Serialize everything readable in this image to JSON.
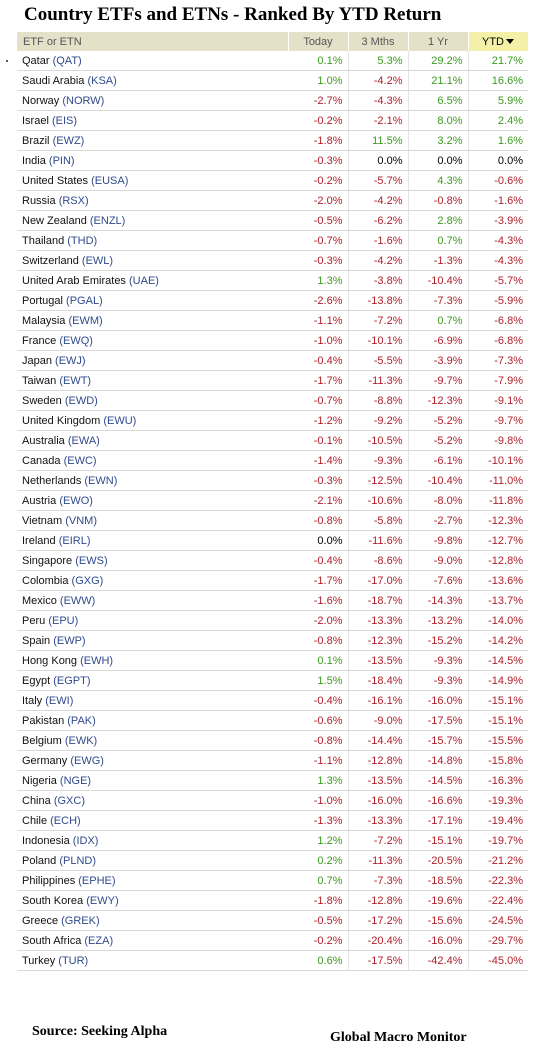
{
  "title": "Country ETFs and ETNs - Ranked By YTD Return",
  "footer": {
    "source": "Source:  Seeking Alpha",
    "brand": "Global Macro Monitor"
  },
  "colors": {
    "positive": "#3a9a1e",
    "negative": "#b0202a",
    "header_bg": "#e5e1c8",
    "sorted_header_bg": "#f4f0a8",
    "ticker": "#2f4a8c"
  },
  "chart_data": {
    "type": "table",
    "columns": [
      "ETF or ETN",
      "Today",
      "3 Mths",
      "1 Yr",
      "YTD"
    ],
    "sorted_by": "YTD",
    "rows": [
      {
        "name": "Qatar",
        "ticker": "(QAT)",
        "today": "0.1%",
        "m3": "5.3%",
        "yr1": "29.2%",
        "ytd": "21.7%"
      },
      {
        "name": "Saudi Arabia",
        "ticker": "(KSA)",
        "today": "1.0%",
        "m3": "-4.2%",
        "yr1": "21.1%",
        "ytd": "16.6%"
      },
      {
        "name": "Norway",
        "ticker": "(NORW)",
        "today": "-2.7%",
        "m3": "-4.3%",
        "yr1": "6.5%",
        "ytd": "5.9%"
      },
      {
        "name": "Israel",
        "ticker": "(EIS)",
        "today": "-0.2%",
        "m3": "-2.1%",
        "yr1": "8.0%",
        "ytd": "2.4%"
      },
      {
        "name": "Brazil",
        "ticker": "(EWZ)",
        "today": "-1.8%",
        "m3": "11.5%",
        "yr1": "3.2%",
        "ytd": "1.6%"
      },
      {
        "name": "India",
        "ticker": "(PIN)",
        "today": "-0.3%",
        "m3": "0.0%",
        "yr1": "0.0%",
        "ytd": "0.0%"
      },
      {
        "name": "United States",
        "ticker": "(EUSA)",
        "today": "-0.2%",
        "m3": "-5.7%",
        "yr1": "4.3%",
        "ytd": "-0.6%"
      },
      {
        "name": "Russia",
        "ticker": "(RSX)",
        "today": "-2.0%",
        "m3": "-4.2%",
        "yr1": "-0.8%",
        "ytd": "-1.6%"
      },
      {
        "name": "New Zealand",
        "ticker": "(ENZL)",
        "today": "-0.5%",
        "m3": "-6.2%",
        "yr1": "2.8%",
        "ytd": "-3.9%"
      },
      {
        "name": "Thailand",
        "ticker": "(THD)",
        "today": "-0.7%",
        "m3": "-1.6%",
        "yr1": "0.7%",
        "ytd": "-4.3%"
      },
      {
        "name": "Switzerland",
        "ticker": "(EWL)",
        "today": "-0.3%",
        "m3": "-4.2%",
        "yr1": "-1.3%",
        "ytd": "-4.3%"
      },
      {
        "name": "United Arab Emirates",
        "ticker": "(UAE)",
        "today": "1.3%",
        "m3": "-3.8%",
        "yr1": "-10.4%",
        "ytd": "-5.7%"
      },
      {
        "name": "Portugal",
        "ticker": "(PGAL)",
        "today": "-2.6%",
        "m3": "-13.8%",
        "yr1": "-7.3%",
        "ytd": "-5.9%"
      },
      {
        "name": "Malaysia",
        "ticker": "(EWM)",
        "today": "-1.1%",
        "m3": "-7.2%",
        "yr1": "0.7%",
        "ytd": "-6.8%"
      },
      {
        "name": "France",
        "ticker": "(EWQ)",
        "today": "-1.0%",
        "m3": "-10.1%",
        "yr1": "-6.9%",
        "ytd": "-6.8%"
      },
      {
        "name": "Japan",
        "ticker": "(EWJ)",
        "today": "-0.4%",
        "m3": "-5.5%",
        "yr1": "-3.9%",
        "ytd": "-7.3%"
      },
      {
        "name": "Taiwan",
        "ticker": "(EWT)",
        "today": "-1.7%",
        "m3": "-11.3%",
        "yr1": "-9.7%",
        "ytd": "-7.9%"
      },
      {
        "name": "Sweden",
        "ticker": "(EWD)",
        "today": "-0.7%",
        "m3": "-8.8%",
        "yr1": "-12.3%",
        "ytd": "-9.1%"
      },
      {
        "name": "United Kingdom",
        "ticker": "(EWU)",
        "today": "-1.2%",
        "m3": "-9.2%",
        "yr1": "-5.2%",
        "ytd": "-9.7%"
      },
      {
        "name": "Australia",
        "ticker": "(EWA)",
        "today": "-0.1%",
        "m3": "-10.5%",
        "yr1": "-5.2%",
        "ytd": "-9.8%"
      },
      {
        "name": "Canada",
        "ticker": "(EWC)",
        "today": "-1.4%",
        "m3": "-9.3%",
        "yr1": "-6.1%",
        "ytd": "-10.1%"
      },
      {
        "name": "Netherlands",
        "ticker": "(EWN)",
        "today": "-0.3%",
        "m3": "-12.5%",
        "yr1": "-10.4%",
        "ytd": "-11.0%"
      },
      {
        "name": "Austria",
        "ticker": "(EWO)",
        "today": "-2.1%",
        "m3": "-10.6%",
        "yr1": "-8.0%",
        "ytd": "-11.8%"
      },
      {
        "name": "Vietnam",
        "ticker": "(VNM)",
        "today": "-0.8%",
        "m3": "-5.8%",
        "yr1": "-2.7%",
        "ytd": "-12.3%"
      },
      {
        "name": "Ireland",
        "ticker": "(EIRL)",
        "today": "0.0%",
        "m3": "-11.6%",
        "yr1": "-9.8%",
        "ytd": "-12.7%"
      },
      {
        "name": "Singapore",
        "ticker": "(EWS)",
        "today": "-0.4%",
        "m3": "-8.6%",
        "yr1": "-9.0%",
        "ytd": "-12.8%"
      },
      {
        "name": "Colombia",
        "ticker": "(GXG)",
        "today": "-1.7%",
        "m3": "-17.0%",
        "yr1": "-7.6%",
        "ytd": "-13.6%"
      },
      {
        "name": "Mexico",
        "ticker": "(EWW)",
        "today": "-1.6%",
        "m3": "-18.7%",
        "yr1": "-14.3%",
        "ytd": "-13.7%"
      },
      {
        "name": "Peru",
        "ticker": "(EPU)",
        "today": "-2.0%",
        "m3": "-13.3%",
        "yr1": "-13.2%",
        "ytd": "-14.0%"
      },
      {
        "name": "Spain",
        "ticker": "(EWP)",
        "today": "-0.8%",
        "m3": "-12.3%",
        "yr1": "-15.2%",
        "ytd": "-14.2%"
      },
      {
        "name": "Hong Kong",
        "ticker": "(EWH)",
        "today": "0.1%",
        "m3": "-13.5%",
        "yr1": "-9.3%",
        "ytd": "-14.5%"
      },
      {
        "name": "Egypt",
        "ticker": "(EGPT)",
        "today": "1.5%",
        "m3": "-18.4%",
        "yr1": "-9.3%",
        "ytd": "-14.9%"
      },
      {
        "name": "Italy",
        "ticker": "(EWI)",
        "today": "-0.4%",
        "m3": "-16.1%",
        "yr1": "-16.0%",
        "ytd": "-15.1%"
      },
      {
        "name": "Pakistan",
        "ticker": "(PAK)",
        "today": "-0.6%",
        "m3": "-9.0%",
        "yr1": "-17.5%",
        "ytd": "-15.1%"
      },
      {
        "name": "Belgium",
        "ticker": "(EWK)",
        "today": "-0.8%",
        "m3": "-14.4%",
        "yr1": "-15.7%",
        "ytd": "-15.5%"
      },
      {
        "name": "Germany",
        "ticker": "(EWG)",
        "today": "-1.1%",
        "m3": "-12.8%",
        "yr1": "-14.8%",
        "ytd": "-15.8%"
      },
      {
        "name": "Nigeria",
        "ticker": "(NGE)",
        "today": "1.3%",
        "m3": "-13.5%",
        "yr1": "-14.5%",
        "ytd": "-16.3%"
      },
      {
        "name": "China",
        "ticker": "(GXC)",
        "today": "-1.0%",
        "m3": "-16.0%",
        "yr1": "-16.6%",
        "ytd": "-19.3%"
      },
      {
        "name": "Chile",
        "ticker": "(ECH)",
        "today": "-1.3%",
        "m3": "-13.3%",
        "yr1": "-17.1%",
        "ytd": "-19.4%"
      },
      {
        "name": "Indonesia",
        "ticker": "(IDX)",
        "today": "1.2%",
        "m3": "-7.2%",
        "yr1": "-15.1%",
        "ytd": "-19.7%"
      },
      {
        "name": "Poland",
        "ticker": "(PLND)",
        "today": "0.2%",
        "m3": "-11.3%",
        "yr1": "-20.5%",
        "ytd": "-21.2%"
      },
      {
        "name": "Philippines",
        "ticker": "(EPHE)",
        "today": "0.7%",
        "m3": "-7.3%",
        "yr1": "-18.5%",
        "ytd": "-22.3%"
      },
      {
        "name": "South Korea",
        "ticker": "(EWY)",
        "today": "-1.8%",
        "m3": "-12.8%",
        "yr1": "-19.6%",
        "ytd": "-22.4%"
      },
      {
        "name": "Greece",
        "ticker": "(GREK)",
        "today": "-0.5%",
        "m3": "-17.2%",
        "yr1": "-15.6%",
        "ytd": "-24.5%"
      },
      {
        "name": "South Africa",
        "ticker": "(EZA)",
        "today": "-0.2%",
        "m3": "-20.4%",
        "yr1": "-16.0%",
        "ytd": "-29.7%"
      },
      {
        "name": "Turkey",
        "ticker": "(TUR)",
        "today": "0.6%",
        "m3": "-17.5%",
        "yr1": "-42.4%",
        "ytd": "-45.0%"
      }
    ]
  }
}
